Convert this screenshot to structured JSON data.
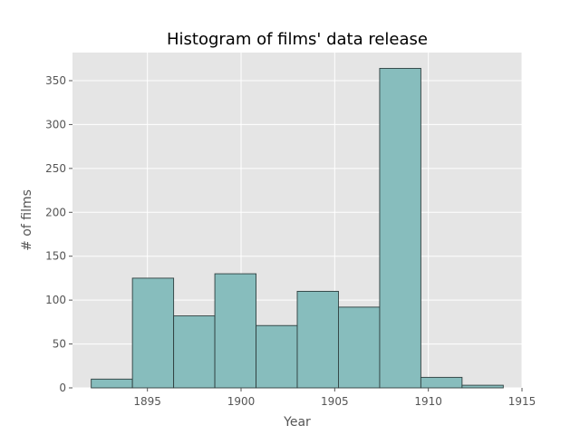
{
  "chart_data": {
    "type": "bar",
    "title": "Histogram of films' data release",
    "xlabel": "Year",
    "ylabel": "# of films",
    "bin_edges": [
      1892,
      1894.2,
      1896.4,
      1898.6,
      1900.8,
      1903,
      1905.2,
      1907.4,
      1909.6,
      1911.8,
      1914
    ],
    "values": [
      10,
      125,
      82,
      130,
      71,
      110,
      92,
      364,
      12,
      3
    ],
    "xlim": [
      1891,
      1915
    ],
    "ylim": [
      0,
      382
    ],
    "xticks": [
      1895,
      1900,
      1905,
      1910,
      1915
    ],
    "yticks": [
      0,
      50,
      100,
      150,
      200,
      250,
      300,
      350
    ],
    "grid": true,
    "colors": {
      "background": "#e5e5e5",
      "bar_fill": "#87bdbd",
      "bar_edge": "#2f3f3f",
      "grid": "#ffffff"
    }
  }
}
